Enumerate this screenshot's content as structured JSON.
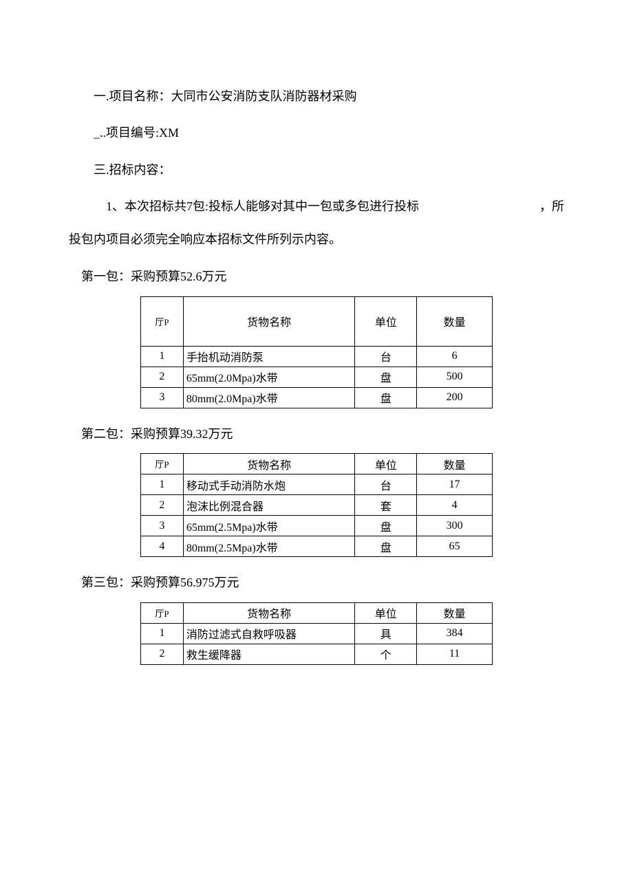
{
  "line1": "一.项目名称：大同市公安消防支队消防器材采购",
  "line2": "_..项目编号:XM",
  "line3": "三.招标内容：",
  "line4_left": "1、本次招标共7包:投标人能够对其中一包或多包进行投标",
  "line4_right": "，所",
  "line5": "投包内项目必须完全响应本招标文件所列示内容。",
  "package1": {
    "title": "第一包：采购预算52.6万元",
    "headers": {
      "serial": "厅P",
      "name": "货物名称",
      "unit": "单位",
      "qty": "数量"
    },
    "rows": [
      {
        "serial": "1",
        "name": "手抬机动消防泵",
        "unit": "台",
        "qty": "6"
      },
      {
        "serial": "2",
        "name": "65mm(2.0Mpa)水带",
        "unit": "盘",
        "qty": "500"
      },
      {
        "serial": "3",
        "name": "80mm(2.0Mpa)水带",
        "unit": "盘",
        "qty": "200"
      }
    ]
  },
  "package2": {
    "title": "第二包：采购预算39.32万元",
    "headers": {
      "serial": "厅P",
      "name": "货物名称",
      "unit": "单位",
      "qty": "数量"
    },
    "rows": [
      {
        "serial": "1",
        "name": "移动式手动消防水炮",
        "unit": "台",
        "qty": "17"
      },
      {
        "serial": "2",
        "name": "泡沫比例混合器",
        "unit": "套",
        "qty": "4"
      },
      {
        "serial": "3",
        "name": "65mm(2.5Mpa)水带",
        "unit": "盘",
        "qty": "300"
      },
      {
        "serial": "4",
        "name": "80mm(2.5Mpa)水带",
        "unit": "盘",
        "qty": "65"
      }
    ]
  },
  "package3": {
    "title": "第三包：采购预算56.975万元",
    "headers": {
      "serial": "厅P",
      "name": "货物名称",
      "unit": "单位",
      "qty": "数量"
    },
    "rows": [
      {
        "serial": "1",
        "name": "消防过滤式自救呼吸器",
        "unit": "具",
        "qty": "384"
      },
      {
        "serial": "2",
        "name": "救生缓降器",
        "unit": "个",
        "qty": "11"
      }
    ]
  }
}
